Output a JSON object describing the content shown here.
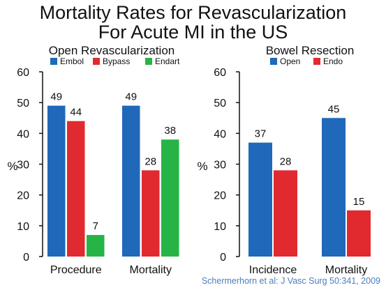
{
  "title": [
    "Mortality Rates for Revascularization",
    "For Acute MI in the US"
  ],
  "citation": "Schermerhorn et al: J Vasc Surg 50:341, 2009",
  "chart_data": [
    {
      "type": "bar",
      "title": "Open Revascularization",
      "ylabel": "%",
      "ylim": [
        0,
        60
      ],
      "yticks": [
        0,
        10,
        20,
        30,
        40,
        50,
        60
      ],
      "categories": [
        "Procedure",
        "Mortality"
      ],
      "legend_position": "top",
      "series": [
        {
          "name": "Embol",
          "color": "#2068b9",
          "values": [
            49,
            49
          ]
        },
        {
          "name": "Bypass",
          "color": "#e02a2f",
          "values": [
            44,
            28
          ]
        },
        {
          "name": "Endart",
          "color": "#27b446",
          "values": [
            7,
            38
          ]
        }
      ]
    },
    {
      "type": "bar",
      "title": "Bowel Resection",
      "ylabel": "%",
      "ylim": [
        0,
        60
      ],
      "yticks": [
        0,
        10,
        20,
        30,
        40,
        50,
        60
      ],
      "categories": [
        "Incidence",
        "Mortality"
      ],
      "legend_position": "top",
      "series": [
        {
          "name": "Open",
          "color": "#2068b9",
          "values": [
            37,
            45
          ]
        },
        {
          "name": "Endo",
          "color": "#e02a2f",
          "values": [
            28,
            15
          ]
        }
      ]
    }
  ]
}
